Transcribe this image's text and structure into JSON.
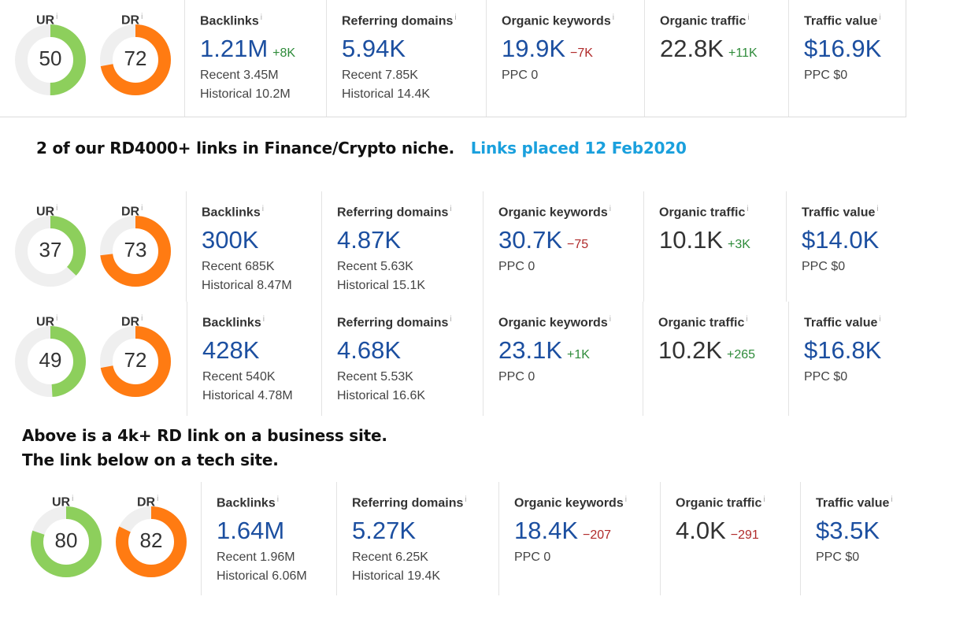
{
  "colors": {
    "ur_ring": "#8dcf5c",
    "dr_ring": "#ff7b12",
    "track": "#efefef",
    "blue_value": "#1c4fa0",
    "pos": "#2e8b3a",
    "neg": "#b02a2a",
    "caption_blue": "#1aa0dd"
  },
  "labels": {
    "ur": "UR",
    "dr": "DR",
    "info": "i",
    "backlinks": "Backlinks",
    "ref_domains": "Referring domains",
    "org_keywords": "Organic keywords",
    "org_traffic": "Organic traffic",
    "traffic_value": "Traffic value"
  },
  "caption1": {
    "text": "2 of our RD4000+ links in Finance/Crypto niche.",
    "highlight": "Links placed 12 Feb2020"
  },
  "caption2": {
    "line1": "Above is a 4k+ RD link on a business site.",
    "line2": "The link below on a tech site."
  },
  "cards": [
    {
      "ur": 50,
      "ur_fill": 0.5,
      "dr": 72,
      "dr_fill": 0.72,
      "backlinks": {
        "value": "1.21M",
        "delta": "+8K",
        "recent": "Recent 3.45M",
        "historical": "Historical 10.2M"
      },
      "ref_domains": {
        "value": "5.94K",
        "recent": "Recent 7.85K",
        "historical": "Historical 14.4K"
      },
      "org_keywords": {
        "value": "19.9K",
        "delta": "−7K",
        "ppc": "PPC 0"
      },
      "org_traffic": {
        "value": "22.8K",
        "delta": "+11K"
      },
      "traffic_value": {
        "value": "$16.9K",
        "ppc": "PPC $0"
      }
    },
    {
      "ur": 37,
      "ur_fill": 0.37,
      "dr": 73,
      "dr_fill": 0.73,
      "backlinks": {
        "value": "300K",
        "delta": "",
        "recent": "Recent 685K",
        "historical": "Historical 8.47M"
      },
      "ref_domains": {
        "value": "4.87K",
        "recent": "Recent 5.63K",
        "historical": "Historical 15.1K"
      },
      "org_keywords": {
        "value": "30.7K",
        "delta": "−75",
        "ppc": "PPC 0"
      },
      "org_traffic": {
        "value": "10.1K",
        "delta": "+3K"
      },
      "traffic_value": {
        "value": "$14.0K",
        "ppc": "PPC $0"
      }
    },
    {
      "ur": 49,
      "ur_fill": 0.49,
      "dr": 72,
      "dr_fill": 0.72,
      "backlinks": {
        "value": "428K",
        "delta": "",
        "recent": "Recent 540K",
        "historical": "Historical 4.78M"
      },
      "ref_domains": {
        "value": "4.68K",
        "recent": "Recent 5.53K",
        "historical": "Historical 16.6K"
      },
      "org_keywords": {
        "value": "23.1K",
        "delta": "+1K",
        "ppc": "PPC 0"
      },
      "org_traffic": {
        "value": "10.2K",
        "delta": "+265"
      },
      "traffic_value": {
        "value": "$16.8K",
        "ppc": "PPC $0"
      }
    },
    {
      "ur": 80,
      "ur_fill": 0.8,
      "dr": 82,
      "dr_fill": 0.82,
      "backlinks": {
        "value": "1.64M",
        "delta": "",
        "recent": "Recent 1.96M",
        "historical": "Historical 6.06M"
      },
      "ref_domains": {
        "value": "5.27K",
        "recent": "Recent 6.25K",
        "historical": "Historical 19.4K"
      },
      "org_keywords": {
        "value": "18.4K",
        "delta": "−207",
        "ppc": "PPC 0"
      },
      "org_traffic": {
        "value": "4.0K",
        "delta": "−291"
      },
      "traffic_value": {
        "value": "$3.5K",
        "ppc": "PPC $0"
      }
    }
  ]
}
